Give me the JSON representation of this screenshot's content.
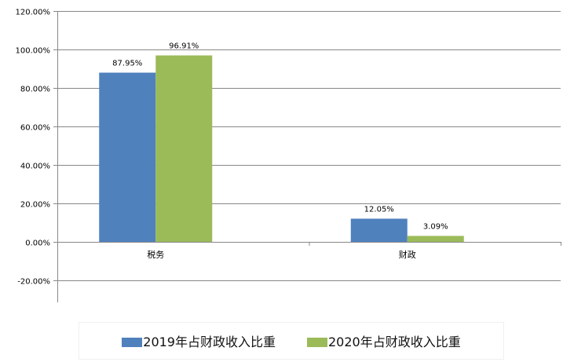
{
  "chart_data": {
    "type": "bar",
    "title": "",
    "xlabel": "",
    "ylabel": "",
    "categories": [
      "税务",
      "财政"
    ],
    "series": [
      {
        "name": "2019年占财政收入比重",
        "values": [
          87.95,
          12.05
        ],
        "labels": [
          "87.95%",
          "12.05%"
        ],
        "color": "#4F81BD"
      },
      {
        "name": "2020年占财政收入比重",
        "values": [
          96.91,
          3.09
        ],
        "labels": [
          "96.91%",
          "3.09%"
        ],
        "color": "#9BBB59"
      }
    ],
    "ylim": [
      -20,
      120
    ],
    "yticks": [
      120,
      100,
      80,
      60,
      40,
      20,
      0,
      -20
    ],
    "ytick_labels": [
      "120.00%",
      "100.00%",
      "80.00%",
      "60.00%",
      "40.00%",
      "20.00%",
      "0.00%",
      "-20.00%"
    ],
    "grid": true,
    "legend_position": "bottom"
  }
}
